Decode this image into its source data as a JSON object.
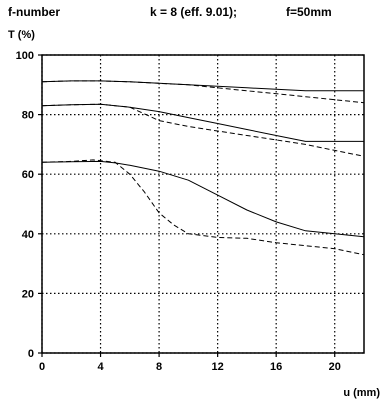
{
  "header": {
    "left": "f-number",
    "center": "k = 8 (eff. 9.01);",
    "right": "f=50mm"
  },
  "chart_data": {
    "type": "line",
    "ylabel": "T (%)",
    "xlabel": "u (mm)",
    "xlim": [
      0,
      22
    ],
    "ylim": [
      0,
      100
    ],
    "xticks": [
      0,
      4,
      8,
      12,
      16,
      20
    ],
    "yticks": [
      0,
      20,
      40,
      60,
      80,
      100
    ],
    "grid": "dotted",
    "series": [
      {
        "style": "solid",
        "x": [
          0,
          2,
          4,
          6,
          8,
          10,
          12,
          14,
          16,
          18,
          20,
          22
        ],
        "y": [
          91,
          91.3,
          91.3,
          91,
          90.5,
          90,
          89.5,
          89,
          88.5,
          88,
          88,
          88
        ]
      },
      {
        "style": "dashed",
        "x": [
          0,
          2,
          4,
          6,
          8,
          10,
          12,
          14,
          16,
          18,
          20,
          22
        ],
        "y": [
          91,
          91.3,
          91.3,
          91,
          90.5,
          90,
          89,
          88,
          87,
          86,
          85,
          84
        ]
      },
      {
        "style": "solid",
        "x": [
          0,
          2,
          4,
          6,
          8,
          10,
          12,
          14,
          16,
          18,
          20,
          22
        ],
        "y": [
          83,
          83.3,
          83.5,
          82.5,
          81,
          79,
          77,
          75,
          73,
          71,
          71,
          71
        ]
      },
      {
        "style": "dashed",
        "x": [
          0,
          2,
          4,
          6,
          8,
          10,
          12,
          14,
          16,
          18,
          20,
          22
        ],
        "y": [
          83,
          83.3,
          83.5,
          82.5,
          78,
          76,
          74.5,
          73,
          71.5,
          70,
          68,
          66
        ]
      },
      {
        "style": "solid",
        "x": [
          0,
          2,
          4,
          5,
          6,
          8,
          10,
          12,
          14,
          16,
          18,
          20,
          22
        ],
        "y": [
          64,
          64.2,
          64.3,
          63.8,
          63,
          61,
          58,
          53,
          48,
          44,
          41,
          40,
          39
        ]
      },
      {
        "style": "dashed",
        "x": [
          0,
          2,
          3.5,
          5,
          6,
          7,
          8,
          9,
          10,
          12,
          14,
          16,
          18,
          20,
          22
        ],
        "y": [
          64,
          64.3,
          64.8,
          64,
          60,
          54,
          47,
          43,
          40,
          38.8,
          38.5,
          37,
          36,
          35,
          33
        ]
      }
    ]
  }
}
